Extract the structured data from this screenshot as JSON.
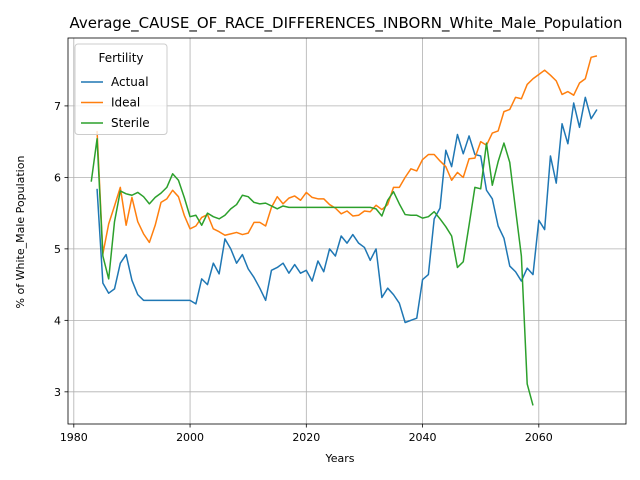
{
  "chart_data": {
    "type": "line",
    "title": "Average_CAUSE_OF_RACE_DIFFERENCES_INBORN_White_Male_Population",
    "xlabel": "Years",
    "ylabel": "% of White_Male Population",
    "xlim": [
      1979,
      2075
    ],
    "ylim": [
      2.55,
      7.95
    ],
    "xticks": [
      1980,
      2000,
      2020,
      2040,
      2060
    ],
    "yticks": [
      3,
      4,
      5,
      6,
      7
    ],
    "grid": true,
    "legend": {
      "title": "Fertility",
      "placement": "top-left"
    },
    "series": [
      {
        "name": "Actual",
        "color": "#1f77b4",
        "points": [
          [
            1984,
            5.84
          ],
          [
            1985,
            4.52
          ],
          [
            1986,
            4.38
          ],
          [
            1987,
            4.44
          ],
          [
            1988,
            4.8
          ],
          [
            1989,
            4.92
          ],
          [
            1990,
            4.56
          ],
          [
            1991,
            4.36
          ],
          [
            1992,
            4.28
          ],
          [
            1993,
            4.28
          ],
          [
            1994,
            4.28
          ],
          [
            1995,
            4.28
          ],
          [
            1996,
            4.28
          ],
          [
            1997,
            4.28
          ],
          [
            1998,
            4.28
          ],
          [
            1999,
            4.28
          ],
          [
            2000,
            4.28
          ],
          [
            2001,
            4.23
          ],
          [
            2002,
            4.58
          ],
          [
            2003,
            4.5
          ],
          [
            2004,
            4.8
          ],
          [
            2005,
            4.65
          ],
          [
            2006,
            5.14
          ],
          [
            2007,
            5.0
          ],
          [
            2008,
            4.8
          ],
          [
            2009,
            4.92
          ],
          [
            2010,
            4.72
          ],
          [
            2011,
            4.6
          ],
          [
            2012,
            4.45
          ],
          [
            2013,
            4.28
          ],
          [
            2014,
            4.7
          ],
          [
            2015,
            4.74
          ],
          [
            2016,
            4.8
          ],
          [
            2017,
            4.66
          ],
          [
            2018,
            4.78
          ],
          [
            2019,
            4.66
          ],
          [
            2020,
            4.7
          ],
          [
            2021,
            4.55
          ],
          [
            2022,
            4.83
          ],
          [
            2023,
            4.68
          ],
          [
            2024,
            5.0
          ],
          [
            2025,
            4.9
          ],
          [
            2026,
            5.18
          ],
          [
            2027,
            5.08
          ],
          [
            2028,
            5.2
          ],
          [
            2029,
            5.08
          ],
          [
            2030,
            5.02
          ],
          [
            2031,
            4.84
          ],
          [
            2032,
            5.0
          ],
          [
            2033,
            4.32
          ],
          [
            2034,
            4.45
          ],
          [
            2035,
            4.36
          ],
          [
            2036,
            4.24
          ],
          [
            2037,
            3.97
          ],
          [
            2038,
            4.0
          ],
          [
            2039,
            4.03
          ],
          [
            2040,
            4.57
          ],
          [
            2041,
            4.64
          ],
          [
            2042,
            5.42
          ],
          [
            2043,
            5.57
          ],
          [
            2044,
            6.38
          ],
          [
            2045,
            6.15
          ],
          [
            2046,
            6.6
          ],
          [
            2047,
            6.33
          ],
          [
            2048,
            6.58
          ],
          [
            2049,
            6.32
          ],
          [
            2050,
            6.3
          ],
          [
            2051,
            5.82
          ],
          [
            2052,
            5.7
          ],
          [
            2053,
            5.32
          ],
          [
            2054,
            5.15
          ],
          [
            2055,
            4.76
          ],
          [
            2056,
            4.68
          ],
          [
            2057,
            4.55
          ],
          [
            2058,
            4.73
          ],
          [
            2059,
            4.64
          ],
          [
            2060,
            5.4
          ],
          [
            2061,
            5.27
          ],
          [
            2062,
            6.3
          ],
          [
            2063,
            5.92
          ],
          [
            2064,
            6.75
          ],
          [
            2065,
            6.47
          ],
          [
            2066,
            7.04
          ],
          [
            2067,
            6.7
          ],
          [
            2068,
            7.12
          ],
          [
            2069,
            6.82
          ],
          [
            2070,
            6.95
          ]
        ]
      },
      {
        "name": "Ideal",
        "color": "#ff7f0e",
        "points": [
          [
            1984,
            6.65
          ],
          [
            1985,
            4.93
          ],
          [
            1986,
            5.35
          ],
          [
            1987,
            5.6
          ],
          [
            1988,
            5.86
          ],
          [
            1989,
            5.33
          ],
          [
            1990,
            5.72
          ],
          [
            1991,
            5.38
          ],
          [
            1992,
            5.21
          ],
          [
            1993,
            5.09
          ],
          [
            1994,
            5.33
          ],
          [
            1995,
            5.65
          ],
          [
            1996,
            5.7
          ],
          [
            1997,
            5.82
          ],
          [
            1998,
            5.73
          ],
          [
            1999,
            5.47
          ],
          [
            2000,
            5.28
          ],
          [
            2001,
            5.32
          ],
          [
            2002,
            5.44
          ],
          [
            2003,
            5.48
          ],
          [
            2004,
            5.28
          ],
          [
            2005,
            5.24
          ],
          [
            2006,
            5.19
          ],
          [
            2007,
            5.21
          ],
          [
            2008,
            5.23
          ],
          [
            2009,
            5.2
          ],
          [
            2010,
            5.22
          ],
          [
            2011,
            5.37
          ],
          [
            2012,
            5.37
          ],
          [
            2013,
            5.32
          ],
          [
            2014,
            5.58
          ],
          [
            2015,
            5.73
          ],
          [
            2016,
            5.63
          ],
          [
            2017,
            5.71
          ],
          [
            2018,
            5.74
          ],
          [
            2019,
            5.68
          ],
          [
            2020,
            5.79
          ],
          [
            2021,
            5.72
          ],
          [
            2022,
            5.7
          ],
          [
            2023,
            5.7
          ],
          [
            2024,
            5.62
          ],
          [
            2025,
            5.57
          ],
          [
            2026,
            5.49
          ],
          [
            2027,
            5.53
          ],
          [
            2028,
            5.46
          ],
          [
            2029,
            5.47
          ],
          [
            2030,
            5.53
          ],
          [
            2031,
            5.52
          ],
          [
            2032,
            5.61
          ],
          [
            2033,
            5.55
          ],
          [
            2034,
            5.62
          ],
          [
            2035,
            5.86
          ],
          [
            2036,
            5.86
          ],
          [
            2037,
            6.0
          ],
          [
            2038,
            6.12
          ],
          [
            2039,
            6.09
          ],
          [
            2040,
            6.25
          ],
          [
            2041,
            6.32
          ],
          [
            2042,
            6.32
          ],
          [
            2043,
            6.23
          ],
          [
            2044,
            6.15
          ],
          [
            2045,
            5.96
          ],
          [
            2046,
            6.07
          ],
          [
            2047,
            6.0
          ],
          [
            2048,
            6.26
          ],
          [
            2049,
            6.27
          ],
          [
            2050,
            6.5
          ],
          [
            2051,
            6.45
          ],
          [
            2052,
            6.62
          ],
          [
            2053,
            6.65
          ],
          [
            2054,
            6.92
          ],
          [
            2055,
            6.95
          ],
          [
            2056,
            7.12
          ],
          [
            2057,
            7.1
          ],
          [
            2058,
            7.3
          ],
          [
            2059,
            7.38
          ],
          [
            2060,
            7.44
          ],
          [
            2061,
            7.5
          ],
          [
            2062,
            7.43
          ],
          [
            2063,
            7.35
          ],
          [
            2064,
            7.16
          ],
          [
            2065,
            7.2
          ],
          [
            2066,
            7.15
          ],
          [
            2067,
            7.32
          ],
          [
            2068,
            7.38
          ],
          [
            2069,
            7.68
          ],
          [
            2070,
            7.7
          ]
        ]
      },
      {
        "name": "Sterile",
        "color": "#2ca02c",
        "points": [
          [
            1983,
            5.94
          ],
          [
            1984,
            6.54
          ],
          [
            1985,
            4.9
          ],
          [
            1986,
            4.58
          ],
          [
            1987,
            5.38
          ],
          [
            1988,
            5.81
          ],
          [
            1989,
            5.77
          ],
          [
            1990,
            5.75
          ],
          [
            1991,
            5.79
          ],
          [
            1992,
            5.73
          ],
          [
            1993,
            5.63
          ],
          [
            1994,
            5.72
          ],
          [
            1995,
            5.78
          ],
          [
            1996,
            5.86
          ],
          [
            1997,
            6.05
          ],
          [
            1998,
            5.96
          ],
          [
            1999,
            5.72
          ],
          [
            2000,
            5.45
          ],
          [
            2001,
            5.47
          ],
          [
            2002,
            5.33
          ],
          [
            2003,
            5.5
          ],
          [
            2004,
            5.45
          ],
          [
            2005,
            5.42
          ],
          [
            2006,
            5.47
          ],
          [
            2007,
            5.56
          ],
          [
            2008,
            5.62
          ],
          [
            2009,
            5.75
          ],
          [
            2010,
            5.73
          ],
          [
            2011,
            5.65
          ],
          [
            2012,
            5.63
          ],
          [
            2013,
            5.64
          ],
          [
            2014,
            5.6
          ],
          [
            2015,
            5.56
          ],
          [
            2016,
            5.6
          ],
          [
            2017,
            5.58
          ],
          [
            2018,
            5.58
          ],
          [
            2019,
            5.58
          ],
          [
            2020,
            5.58
          ],
          [
            2021,
            5.58
          ],
          [
            2022,
            5.58
          ],
          [
            2023,
            5.58
          ],
          [
            2024,
            5.58
          ],
          [
            2025,
            5.58
          ],
          [
            2026,
            5.58
          ],
          [
            2027,
            5.58
          ],
          [
            2028,
            5.58
          ],
          [
            2029,
            5.58
          ],
          [
            2030,
            5.58
          ],
          [
            2031,
            5.58
          ],
          [
            2032,
            5.56
          ],
          [
            2033,
            5.46
          ],
          [
            2034,
            5.68
          ],
          [
            2035,
            5.8
          ],
          [
            2036,
            5.63
          ],
          [
            2037,
            5.48
          ],
          [
            2038,
            5.47
          ],
          [
            2039,
            5.47
          ],
          [
            2040,
            5.43
          ],
          [
            2041,
            5.45
          ],
          [
            2042,
            5.52
          ],
          [
            2043,
            5.42
          ],
          [
            2044,
            5.31
          ],
          [
            2045,
            5.18
          ],
          [
            2046,
            4.74
          ],
          [
            2047,
            4.82
          ],
          [
            2048,
            5.33
          ],
          [
            2049,
            5.86
          ],
          [
            2050,
            5.84
          ],
          [
            2051,
            6.48
          ],
          [
            2052,
            5.89
          ],
          [
            2053,
            6.22
          ],
          [
            2054,
            6.48
          ],
          [
            2055,
            6.21
          ],
          [
            2056,
            5.55
          ],
          [
            2057,
            4.9
          ],
          [
            2058,
            3.11
          ],
          [
            2059,
            2.81
          ]
        ]
      }
    ]
  }
}
